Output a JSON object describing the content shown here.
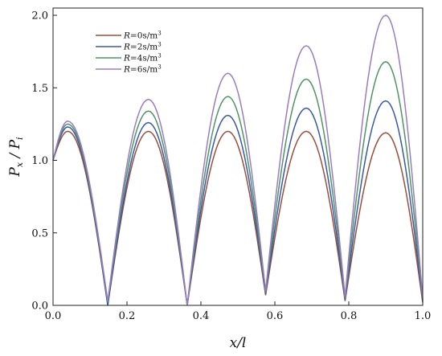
{
  "chart_data": {
    "type": "line",
    "xlabel": "x/l",
    "ylabel": "P_x / P_i",
    "ylabel_parts": {
      "p1": "P",
      "s1": "x",
      "sep": " / ",
      "p2": "P",
      "s2": "i"
    },
    "xlim": [
      0.0,
      1.0
    ],
    "ylim": [
      0.0,
      2.05
    ],
    "xticks": [
      "0.0",
      "0.2",
      "0.4",
      "0.6",
      "0.8",
      "1.0"
    ],
    "yticks": [
      "0.0",
      "0.5",
      "1.0",
      "1.5",
      "2.0"
    ],
    "legend_position": "top-left",
    "grid": false,
    "x": [
      0.0,
      0.04,
      0.148,
      0.258,
      0.363,
      0.473,
      0.575,
      0.685,
      0.79,
      0.9,
      1.0
    ],
    "series": [
      {
        "name": "R=0s/m3",
        "label": {
          "r": "R",
          "eq": "=0s/m",
          "exp": "3"
        },
        "color": "#9b4e3a",
        "values": [
          1.0,
          1.2,
          0.0,
          1.2,
          0.0,
          1.2,
          0.07,
          1.2,
          0.03,
          1.19,
          0.02
        ]
      },
      {
        "name": "R=2s/m3",
        "label": {
          "r": "R",
          "eq": "=2s/m",
          "exp": "3"
        },
        "color": "#3a58a8",
        "values": [
          1.0,
          1.23,
          0.0,
          1.26,
          0.0,
          1.31,
          0.08,
          1.36,
          0.04,
          1.41,
          0.03
        ]
      },
      {
        "name": "R=4s/m3",
        "label": {
          "r": "R",
          "eq": "=4s/m",
          "exp": "3"
        },
        "color": "#4f9464",
        "values": [
          1.0,
          1.25,
          0.02,
          1.34,
          0.0,
          1.44,
          0.09,
          1.56,
          0.05,
          1.68,
          0.04
        ]
      },
      {
        "name": "R=6s/m3",
        "label": {
          "r": "R",
          "eq": "=6s/m",
          "exp": "3"
        },
        "color": "#9b7cc2",
        "values": [
          1.0,
          1.27,
          0.03,
          1.42,
          0.0,
          1.6,
          0.1,
          1.79,
          0.06,
          2.0,
          0.05
        ]
      }
    ]
  }
}
